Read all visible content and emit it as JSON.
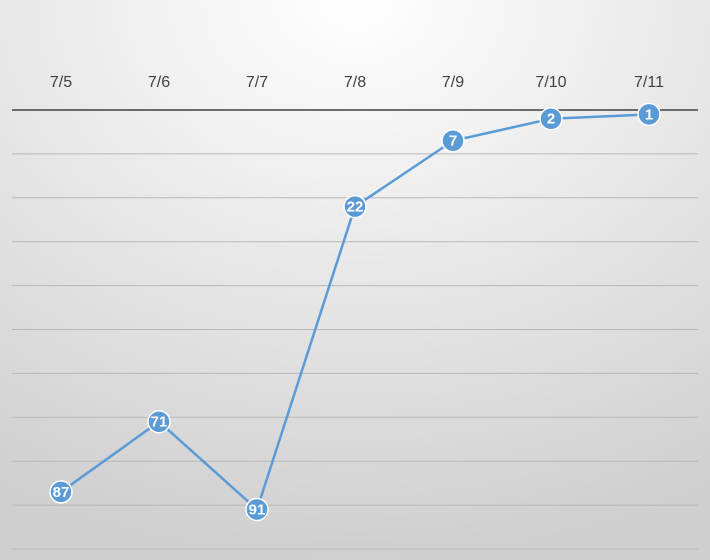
{
  "chart_data": {
    "type": "line",
    "categories": [
      "7/5",
      "7/6",
      "7/7",
      "7/8",
      "7/9",
      "7/10",
      "7/11"
    ],
    "values": [
      87,
      71,
      91,
      22,
      7,
      2,
      1
    ],
    "color": "#5b9bd5",
    "ylim": [
      0,
      100
    ],
    "yticks": [
      0,
      10,
      20,
      30,
      40,
      50,
      60,
      70,
      80,
      90,
      100
    ],
    "y_inverted": true,
    "grid": true,
    "markers": true,
    "data_labels": true
  }
}
